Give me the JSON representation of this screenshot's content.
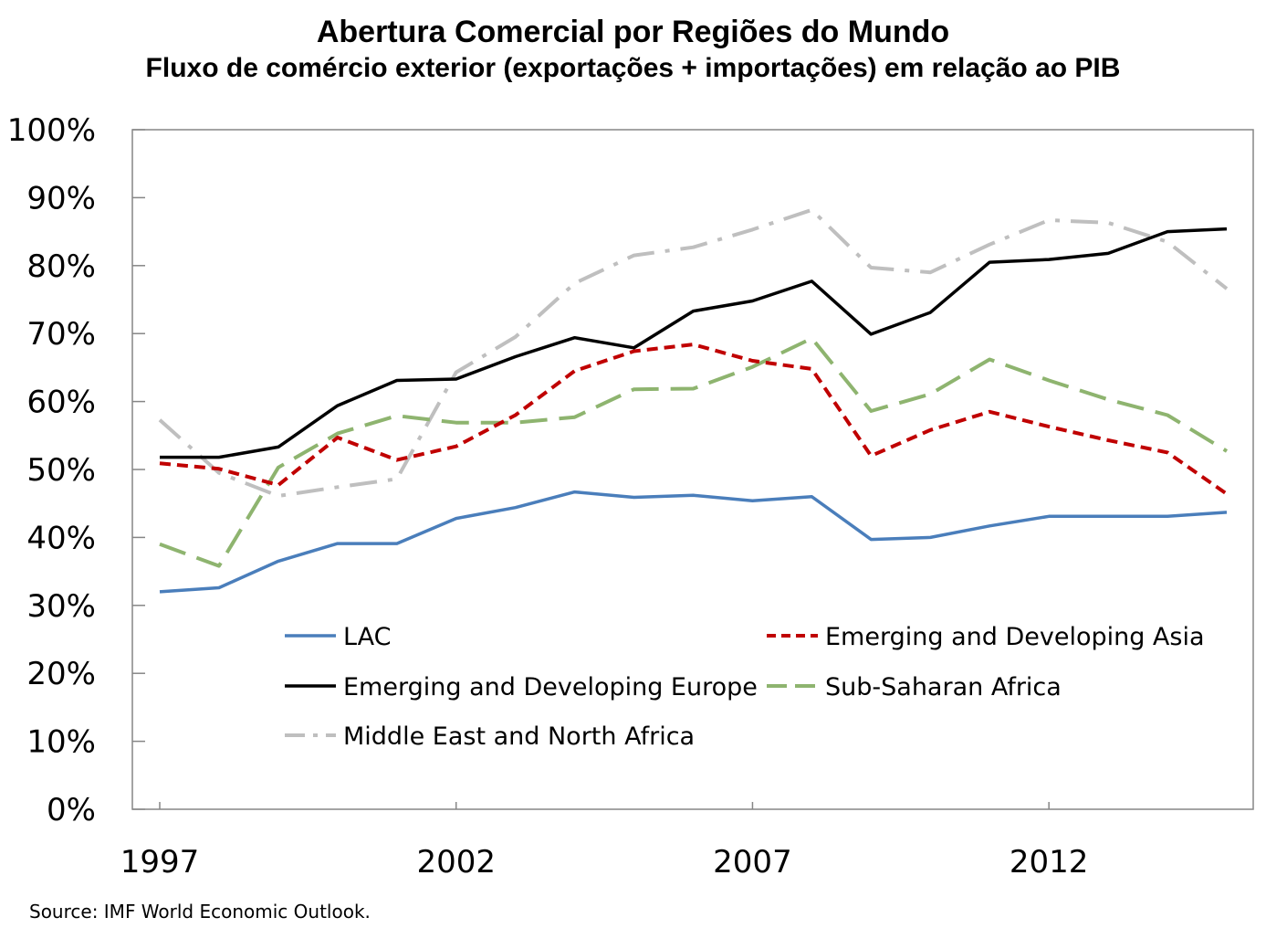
{
  "chart_data": {
    "type": "line",
    "title": "Abertura Comercial por Regiões do Mundo",
    "subtitle": "Fluxo de comércio exterior (exportações + importações) em relação ao PIB",
    "xlabel": "",
    "ylabel": "",
    "x": [
      1997,
      1998,
      1999,
      2000,
      2001,
      2002,
      2003,
      2004,
      2005,
      2006,
      2007,
      2008,
      2009,
      2010,
      2011,
      2012,
      2013,
      2014,
      2015
    ],
    "xticks": [
      1997,
      2002,
      2007,
      2012
    ],
    "xtick_labels": [
      "1997",
      "2002",
      "2007",
      "2012"
    ],
    "xlim": [
      1997,
      2015
    ],
    "ylim": [
      0,
      100
    ],
    "yticks": [
      0,
      10,
      20,
      30,
      40,
      50,
      60,
      70,
      80,
      90,
      100
    ],
    "ytick_labels": [
      "0%",
      "10%",
      "20%",
      "30%",
      "40%",
      "50%",
      "60%",
      "70%",
      "80%",
      "90%",
      "100%"
    ],
    "grid": false,
    "legend_position": "bottom-inside",
    "series": [
      {
        "name": "LAC",
        "color": "#4a7ebb",
        "dash": "solid",
        "values": [
          32,
          32.6,
          36.5,
          39.1,
          39.1,
          42.8,
          44.4,
          46.7,
          45.9,
          46.2,
          45.4,
          46,
          39.7,
          40,
          41.7,
          43.1,
          43.1,
          43.1,
          43.7
        ]
      },
      {
        "name": "Emerging and Developing Asia",
        "color": "#c00000",
        "dash": "dotted",
        "values": [
          50.9,
          50.1,
          47.7,
          54.7,
          51.4,
          53.4,
          58,
          64.5,
          67.4,
          68.4,
          66,
          64.8,
          52,
          55.8,
          58.5,
          56.3,
          54.3,
          52.5,
          46.4
        ]
      },
      {
        "name": "Emerging and Developing Europe",
        "color": "#000000",
        "dash": "solid",
        "values": [
          51.8,
          51.8,
          53.3,
          59.4,
          63.1,
          63.3,
          66.6,
          69.4,
          67.9,
          73.3,
          74.8,
          77.7,
          69.9,
          73.1,
          80.5,
          80.9,
          81.8,
          85,
          85.4
        ]
      },
      {
        "name": "Sub-Saharan Africa",
        "color": "#8eb46f",
        "dash": "dash",
        "values": [
          39,
          35.8,
          50.3,
          55.3,
          57.9,
          56.9,
          56.9,
          57.7,
          61.8,
          61.9,
          65.1,
          69.3,
          58.6,
          61.1,
          66.2,
          63.1,
          60.3,
          58,
          52.7
        ]
      },
      {
        "name": "Middle East and North Africa",
        "color": "#bfbfbf",
        "dash": "dashdot",
        "values": [
          57.3,
          49.5,
          46.1,
          47.4,
          48.6,
          64.3,
          69.5,
          77.4,
          81.5,
          82.7,
          85.3,
          88.2,
          79.7,
          79,
          83.1,
          86.7,
          86.3,
          83.5,
          76.6
        ]
      }
    ],
    "annotations": [
      "Source: IMF World Economic Outlook."
    ]
  },
  "colors": {
    "axis": "#868686",
    "text": "#000000",
    "background": "#ffffff"
  }
}
